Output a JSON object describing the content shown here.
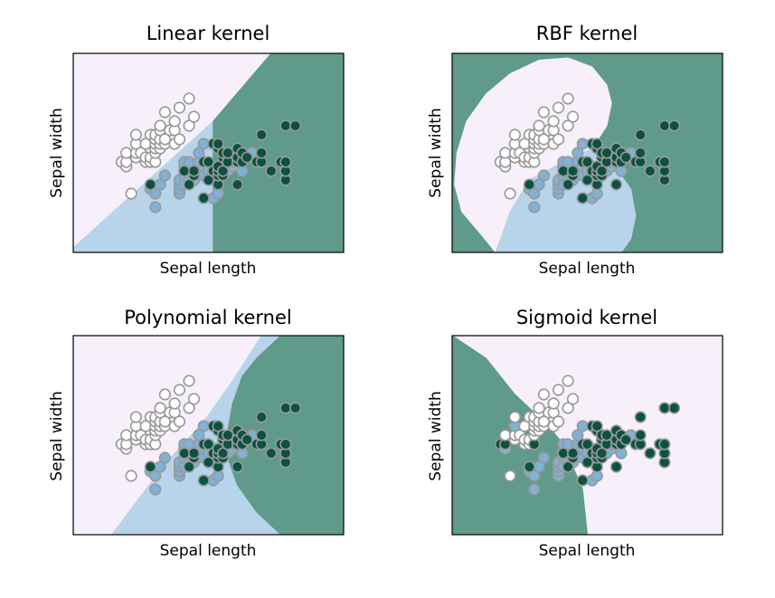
{
  "figure": {
    "colors": {
      "class0": "#f7f0fa",
      "class1": "#b7d4ea",
      "class2": "#5f9a8a",
      "point0": "#ffffff",
      "point1": "#7fb2d6",
      "point2": "#0d5140",
      "edge": "#999999",
      "frame": "#000000"
    }
  },
  "chart_data": [
    {
      "type": "scatter",
      "title": "Linear kernel",
      "xlabel": "Sepal length",
      "ylabel": "Sepal width",
      "xlim": [
        3.3,
        8.9
      ],
      "ylim": [
        1.0,
        5.4
      ],
      "ticks": "none",
      "grid": false,
      "legend": "none"
    },
    {
      "type": "scatter",
      "title": "RBF kernel",
      "xlabel": "Sepal length",
      "ylabel": "Sepal width",
      "xlim": [
        3.3,
        8.9
      ],
      "ylim": [
        1.0,
        5.4
      ],
      "ticks": "none",
      "grid": false,
      "legend": "none"
    },
    {
      "type": "scatter",
      "title": "Polynomial kernel",
      "xlabel": "Sepal length",
      "ylabel": "Sepal width",
      "xlim": [
        3.3,
        8.9
      ],
      "ylim": [
        1.0,
        5.4
      ],
      "ticks": "none",
      "grid": false,
      "legend": "none"
    },
    {
      "type": "scatter",
      "title": "Sigmoid kernel",
      "xlabel": "Sepal length",
      "ylabel": "Sepal width",
      "xlim": [
        3.3,
        8.9
      ],
      "ylim": [
        1.0,
        5.4
      ],
      "ticks": "none",
      "grid": false,
      "legend": "none"
    }
  ],
  "points": [
    {
      "x": 4.3,
      "y": 3.0,
      "c": 0
    },
    {
      "x": 4.4,
      "y": 2.9,
      "c": 0
    },
    {
      "x": 4.4,
      "y": 3.0,
      "c": 0
    },
    {
      "x": 4.4,
      "y": 3.2,
      "c": 0
    },
    {
      "x": 4.5,
      "y": 2.3,
      "c": 0
    },
    {
      "x": 4.6,
      "y": 3.1,
      "c": 0
    },
    {
      "x": 4.6,
      "y": 3.2,
      "c": 0
    },
    {
      "x": 4.6,
      "y": 3.4,
      "c": 0
    },
    {
      "x": 4.6,
      "y": 3.6,
      "c": 0
    },
    {
      "x": 4.7,
      "y": 3.2,
      "c": 0
    },
    {
      "x": 4.8,
      "y": 3.0,
      "c": 0
    },
    {
      "x": 4.8,
      "y": 3.1,
      "c": 0
    },
    {
      "x": 4.8,
      "y": 3.4,
      "c": 0
    },
    {
      "x": 4.9,
      "y": 3.0,
      "c": 0
    },
    {
      "x": 4.9,
      "y": 3.1,
      "c": 0
    },
    {
      "x": 4.9,
      "y": 3.6,
      "c": 0
    },
    {
      "x": 5.0,
      "y": 3.0,
      "c": 0
    },
    {
      "x": 5.0,
      "y": 3.2,
      "c": 0
    },
    {
      "x": 5.0,
      "y": 3.3,
      "c": 0
    },
    {
      "x": 5.0,
      "y": 3.4,
      "c": 0
    },
    {
      "x": 5.0,
      "y": 3.5,
      "c": 0
    },
    {
      "x": 5.0,
      "y": 3.6,
      "c": 0
    },
    {
      "x": 5.1,
      "y": 3.3,
      "c": 0
    },
    {
      "x": 5.1,
      "y": 3.4,
      "c": 0
    },
    {
      "x": 5.1,
      "y": 3.5,
      "c": 0
    },
    {
      "x": 5.1,
      "y": 3.7,
      "c": 0
    },
    {
      "x": 5.1,
      "y": 3.8,
      "c": 0
    },
    {
      "x": 5.2,
      "y": 3.4,
      "c": 0
    },
    {
      "x": 5.2,
      "y": 3.5,
      "c": 0
    },
    {
      "x": 5.2,
      "y": 4.1,
      "c": 0
    },
    {
      "x": 5.3,
      "y": 3.7,
      "c": 0
    },
    {
      "x": 5.4,
      "y": 3.4,
      "c": 0
    },
    {
      "x": 5.4,
      "y": 3.7,
      "c": 0
    },
    {
      "x": 5.4,
      "y": 3.9,
      "c": 0
    },
    {
      "x": 5.5,
      "y": 3.5,
      "c": 0
    },
    {
      "x": 5.5,
      "y": 4.2,
      "c": 0
    },
    {
      "x": 5.7,
      "y": 3.8,
      "c": 0
    },
    {
      "x": 5.7,
      "y": 4.4,
      "c": 0
    },
    {
      "x": 5.8,
      "y": 4.0,
      "c": 0
    },
    {
      "x": 4.9,
      "y": 2.4,
      "c": 1
    },
    {
      "x": 5.0,
      "y": 2.0,
      "c": 1
    },
    {
      "x": 5.0,
      "y": 2.3,
      "c": 1
    },
    {
      "x": 5.1,
      "y": 2.5,
      "c": 1
    },
    {
      "x": 5.2,
      "y": 2.7,
      "c": 1
    },
    {
      "x": 5.5,
      "y": 2.3,
      "c": 1
    },
    {
      "x": 5.5,
      "y": 2.4,
      "c": 1
    },
    {
      "x": 5.5,
      "y": 2.5,
      "c": 1
    },
    {
      "x": 5.5,
      "y": 2.6,
      "c": 1
    },
    {
      "x": 5.6,
      "y": 2.5,
      "c": 1
    },
    {
      "x": 5.6,
      "y": 2.7,
      "c": 1
    },
    {
      "x": 5.6,
      "y": 2.9,
      "c": 1
    },
    {
      "x": 5.6,
      "y": 3.0,
      "c": 1
    },
    {
      "x": 5.7,
      "y": 2.6,
      "c": 1
    },
    {
      "x": 5.7,
      "y": 2.8,
      "c": 1
    },
    {
      "x": 5.7,
      "y": 2.9,
      "c": 1
    },
    {
      "x": 5.7,
      "y": 3.0,
      "c": 1
    },
    {
      "x": 5.8,
      "y": 2.6,
      "c": 1
    },
    {
      "x": 5.8,
      "y": 2.7,
      "c": 1
    },
    {
      "x": 5.9,
      "y": 3.0,
      "c": 1
    },
    {
      "x": 5.9,
      "y": 3.2,
      "c": 1
    },
    {
      "x": 6.0,
      "y": 2.2,
      "c": 1
    },
    {
      "x": 6.0,
      "y": 2.7,
      "c": 1
    },
    {
      "x": 6.0,
      "y": 2.9,
      "c": 1
    },
    {
      "x": 6.0,
      "y": 3.4,
      "c": 1
    },
    {
      "x": 6.1,
      "y": 2.8,
      "c": 1
    },
    {
      "x": 6.1,
      "y": 3.0,
      "c": 1
    },
    {
      "x": 6.2,
      "y": 2.2,
      "c": 1
    },
    {
      "x": 6.2,
      "y": 2.9,
      "c": 1
    },
    {
      "x": 6.3,
      "y": 2.3,
      "c": 1
    },
    {
      "x": 6.3,
      "y": 2.5,
      "c": 1
    },
    {
      "x": 6.3,
      "y": 3.3,
      "c": 1
    },
    {
      "x": 6.4,
      "y": 2.9,
      "c": 1
    },
    {
      "x": 6.4,
      "y": 3.2,
      "c": 1
    },
    {
      "x": 6.5,
      "y": 2.8,
      "c": 1
    },
    {
      "x": 6.6,
      "y": 2.9,
      "c": 1
    },
    {
      "x": 6.6,
      "y": 3.0,
      "c": 1
    },
    {
      "x": 6.7,
      "y": 3.0,
      "c": 1
    },
    {
      "x": 6.7,
      "y": 3.1,
      "c": 1
    },
    {
      "x": 6.8,
      "y": 2.8,
      "c": 1
    },
    {
      "x": 6.9,
      "y": 3.1,
      "c": 1
    },
    {
      "x": 7.0,
      "y": 3.2,
      "c": 1
    },
    {
      "x": 4.9,
      "y": 2.5,
      "c": 2
    },
    {
      "x": 5.6,
      "y": 2.8,
      "c": 2
    },
    {
      "x": 5.7,
      "y": 2.5,
      "c": 2
    },
    {
      "x": 5.8,
      "y": 2.7,
      "c": 2
    },
    {
      "x": 5.8,
      "y": 2.8,
      "c": 2
    },
    {
      "x": 6.0,
      "y": 2.2,
      "c": 2
    },
    {
      "x": 6.0,
      "y": 3.0,
      "c": 2
    },
    {
      "x": 6.1,
      "y": 2.6,
      "c": 2
    },
    {
      "x": 6.1,
      "y": 3.0,
      "c": 2
    },
    {
      "x": 6.2,
      "y": 2.8,
      "c": 2
    },
    {
      "x": 6.2,
      "y": 3.4,
      "c": 2
    },
    {
      "x": 6.3,
      "y": 2.5,
      "c": 2
    },
    {
      "x": 6.3,
      "y": 2.7,
      "c": 2
    },
    {
      "x": 6.3,
      "y": 2.8,
      "c": 2
    },
    {
      "x": 6.3,
      "y": 2.9,
      "c": 2
    },
    {
      "x": 6.3,
      "y": 3.3,
      "c": 2
    },
    {
      "x": 6.3,
      "y": 3.4,
      "c": 2
    },
    {
      "x": 6.4,
      "y": 2.7,
      "c": 2
    },
    {
      "x": 6.4,
      "y": 2.8,
      "c": 2
    },
    {
      "x": 6.4,
      "y": 3.1,
      "c": 2
    },
    {
      "x": 6.4,
      "y": 3.2,
      "c": 2
    },
    {
      "x": 6.5,
      "y": 3.0,
      "c": 2
    },
    {
      "x": 6.5,
      "y": 3.2,
      "c": 2
    },
    {
      "x": 6.7,
      "y": 2.5,
      "c": 2
    },
    {
      "x": 6.7,
      "y": 3.0,
      "c": 2
    },
    {
      "x": 6.7,
      "y": 3.1,
      "c": 2
    },
    {
      "x": 6.7,
      "y": 3.3,
      "c": 2
    },
    {
      "x": 6.8,
      "y": 3.0,
      "c": 2
    },
    {
      "x": 6.8,
      "y": 3.2,
      "c": 2
    },
    {
      "x": 6.9,
      "y": 3.1,
      "c": 2
    },
    {
      "x": 7.1,
      "y": 3.0,
      "c": 2
    },
    {
      "x": 7.2,
      "y": 3.0,
      "c": 2
    },
    {
      "x": 7.2,
      "y": 3.2,
      "c": 2
    },
    {
      "x": 7.2,
      "y": 3.6,
      "c": 2
    },
    {
      "x": 7.4,
      "y": 2.8,
      "c": 2
    },
    {
      "x": 7.6,
      "y": 3.0,
      "c": 2
    },
    {
      "x": 7.7,
      "y": 2.6,
      "c": 2
    },
    {
      "x": 7.7,
      "y": 2.8,
      "c": 2
    },
    {
      "x": 7.7,
      "y": 3.0,
      "c": 2
    },
    {
      "x": 7.7,
      "y": 3.8,
      "c": 2
    },
    {
      "x": 7.9,
      "y": 3.8,
      "c": 2
    }
  ],
  "regions": {
    "linear": [
      {
        "c": 1,
        "poly": [
          [
            3.3,
            1.0
          ],
          [
            6.2,
            1.0
          ],
          [
            6.2,
            3.9
          ],
          [
            3.3,
            1.1
          ]
        ]
      },
      {
        "c": 2,
        "poly": [
          [
            6.2,
            1.0
          ],
          [
            8.9,
            1.0
          ],
          [
            8.9,
            5.4
          ],
          [
            7.4,
            5.4
          ],
          [
            6.2,
            3.9
          ]
        ]
      }
    ],
    "rbf": [
      {
        "c": 2,
        "poly": [
          [
            3.3,
            1.0
          ],
          [
            8.9,
            1.0
          ],
          [
            8.9,
            5.4
          ],
          [
            3.3,
            5.4
          ]
        ]
      },
      {
        "c": 0,
        "poly": [
          [
            4.2,
            1.0
          ],
          [
            3.9,
            1.4
          ],
          [
            3.5,
            1.9
          ],
          [
            3.35,
            2.5
          ],
          [
            3.4,
            3.2
          ],
          [
            3.6,
            3.9
          ],
          [
            4.0,
            4.5
          ],
          [
            4.5,
            4.95
          ],
          [
            5.1,
            5.25
          ],
          [
            5.7,
            5.3
          ],
          [
            6.2,
            5.1
          ],
          [
            6.5,
            4.7
          ],
          [
            6.6,
            4.3
          ],
          [
            6.5,
            3.8
          ],
          [
            6.2,
            3.3
          ],
          [
            5.6,
            3.0
          ],
          [
            4.9,
            2.6
          ],
          [
            4.5,
            1.9
          ],
          [
            4.3,
            1.3
          ],
          [
            4.2,
            1.0
          ]
        ]
      },
      {
        "c": 1,
        "poly": [
          [
            4.2,
            1.0
          ],
          [
            4.5,
            1.9
          ],
          [
            4.9,
            2.6
          ],
          [
            5.6,
            3.0
          ],
          [
            6.2,
            3.3
          ],
          [
            6.6,
            3.0
          ],
          [
            7.0,
            2.4
          ],
          [
            7.1,
            1.8
          ],
          [
            7.0,
            1.3
          ],
          [
            6.8,
            1.0
          ]
        ]
      }
    ],
    "polynomial": [
      {
        "c": 1,
        "poly": [
          [
            4.1,
            1.0
          ],
          [
            4.8,
            2.0
          ],
          [
            5.4,
            2.8
          ],
          [
            6.0,
            3.5
          ],
          [
            6.6,
            4.4
          ],
          [
            7.2,
            5.4
          ],
          [
            7.6,
            5.4
          ],
          [
            7.1,
            4.9
          ],
          [
            6.8,
            4.5
          ],
          [
            6.6,
            3.9
          ],
          [
            6.5,
            3.3
          ],
          [
            6.5,
            2.7
          ],
          [
            6.7,
            2.1
          ],
          [
            7.1,
            1.5
          ],
          [
            7.6,
            1.0
          ]
        ]
      },
      {
        "c": 2,
        "poly": [
          [
            7.6,
            1.0
          ],
          [
            7.1,
            1.5
          ],
          [
            6.7,
            2.1
          ],
          [
            6.5,
            2.7
          ],
          [
            6.5,
            3.3
          ],
          [
            6.6,
            3.9
          ],
          [
            6.8,
            4.5
          ],
          [
            7.1,
            4.9
          ],
          [
            7.6,
            5.4
          ],
          [
            8.9,
            5.4
          ],
          [
            8.9,
            1.0
          ]
        ]
      }
    ],
    "sigmoid": [
      {
        "c": 2,
        "poly": [
          [
            3.3,
            1.0
          ],
          [
            3.3,
            5.4
          ],
          [
            4.0,
            4.9
          ],
          [
            4.6,
            4.1
          ],
          [
            5.3,
            3.4
          ],
          [
            5.6,
            3.0
          ],
          [
            6.0,
            2.0
          ],
          [
            6.1,
            1.0
          ]
        ]
      }
    ]
  },
  "sigmoid_colors": {
    "0": 2,
    "1": 1,
    "2": 2,
    "3": 0,
    "5": 0,
    "7": 1,
    "16": 2,
    "31": 0
  }
}
